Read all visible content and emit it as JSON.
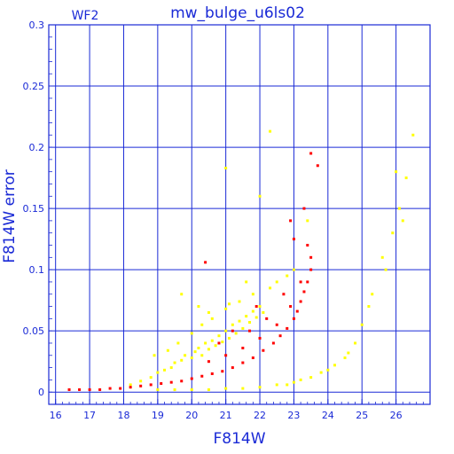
{
  "chart_data": {
    "type": "scatter",
    "title": "mw_bulge_u6ls02",
    "subtitle": "WF2",
    "xlabel": "F814W",
    "ylabel": "F814W error",
    "xlim": [
      15.8,
      27.0
    ],
    "ylim": [
      -0.01,
      0.3
    ],
    "xticks": [
      16,
      17,
      18,
      19,
      20,
      21,
      22,
      23,
      24,
      25,
      26
    ],
    "yticks": [
      0,
      0.05,
      0.1,
      0.15,
      0.2,
      0.25,
      0.3
    ],
    "ytick_labels": [
      "0",
      "0.05",
      "0.1",
      "0.15",
      "0.2",
      "0.25",
      "0.3"
    ],
    "grid": true,
    "series": [
      {
        "color": "#ffff00",
        "points": [
          [
            18.2,
            0.006
          ],
          [
            18.5,
            0.009
          ],
          [
            18.8,
            0.012
          ],
          [
            19.0,
            0.016
          ],
          [
            19.2,
            0.018
          ],
          [
            19.4,
            0.02
          ],
          [
            19.5,
            0.024
          ],
          [
            19.7,
            0.026
          ],
          [
            19.8,
            0.03
          ],
          [
            20.0,
            0.028
          ],
          [
            20.1,
            0.033
          ],
          [
            20.2,
            0.036
          ],
          [
            20.3,
            0.03
          ],
          [
            20.4,
            0.04
          ],
          [
            20.5,
            0.035
          ],
          [
            20.6,
            0.042
          ],
          [
            20.7,
            0.038
          ],
          [
            20.8,
            0.046
          ],
          [
            20.9,
            0.041
          ],
          [
            21.0,
            0.05
          ],
          [
            21.1,
            0.044
          ],
          [
            21.2,
            0.055
          ],
          [
            21.3,
            0.048
          ],
          [
            21.4,
            0.058
          ],
          [
            21.5,
            0.052
          ],
          [
            21.6,
            0.062
          ],
          [
            21.7,
            0.057
          ],
          [
            21.8,
            0.066
          ],
          [
            21.9,
            0.061
          ],
          [
            22.0,
            0.07
          ],
          [
            22.1,
            0.065
          ],
          [
            19.6,
            0.04
          ],
          [
            20.0,
            0.048
          ],
          [
            20.3,
            0.055
          ],
          [
            20.6,
            0.06
          ],
          [
            21.0,
            0.068
          ],
          [
            21.4,
            0.074
          ],
          [
            21.8,
            0.08
          ],
          [
            22.3,
            0.085
          ],
          [
            18.9,
            0.03
          ],
          [
            19.3,
            0.034
          ],
          [
            22.5,
            0.09
          ],
          [
            22.8,
            0.095
          ],
          [
            23.0,
            0.1
          ],
          [
            20.2,
            0.07
          ],
          [
            21.6,
            0.09
          ],
          [
            21.0,
            0.183
          ],
          [
            22.3,
            0.213
          ],
          [
            22.0,
            0.16
          ],
          [
            23.4,
            0.14
          ],
          [
            19.7,
            0.08
          ],
          [
            20.5,
            0.065
          ],
          [
            21.1,
            0.072
          ],
          [
            19.0,
            0.002
          ],
          [
            19.5,
            0.002
          ],
          [
            20.0,
            0.002
          ],
          [
            20.5,
            0.002
          ],
          [
            21.0,
            0.003
          ],
          [
            21.5,
            0.003
          ],
          [
            22.0,
            0.004
          ],
          [
            22.5,
            0.006
          ],
          [
            23.0,
            0.008
          ],
          [
            23.5,
            0.012
          ],
          [
            23.8,
            0.016
          ],
          [
            24.2,
            0.022
          ],
          [
            24.5,
            0.028
          ],
          [
            24.8,
            0.04
          ],
          [
            25.0,
            0.055
          ],
          [
            25.3,
            0.08
          ],
          [
            25.6,
            0.11
          ],
          [
            25.9,
            0.13
          ],
          [
            26.1,
            0.15
          ],
          [
            26.3,
            0.175
          ],
          [
            26.5,
            0.21
          ],
          [
            23.2,
            0.01
          ],
          [
            22.8,
            0.006
          ],
          [
            24.0,
            0.018
          ],
          [
            24.6,
            0.032
          ],
          [
            25.2,
            0.07
          ],
          [
            25.7,
            0.1
          ],
          [
            26.0,
            0.18
          ],
          [
            26.2,
            0.14
          ]
        ]
      },
      {
        "color": "#ff0000",
        "points": [
          [
            16.4,
            0.002
          ],
          [
            16.7,
            0.002
          ],
          [
            17.0,
            0.002
          ],
          [
            17.3,
            0.002
          ],
          [
            17.6,
            0.003
          ],
          [
            17.9,
            0.003
          ],
          [
            18.2,
            0.004
          ],
          [
            18.5,
            0.005
          ],
          [
            18.8,
            0.006
          ],
          [
            19.1,
            0.007
          ],
          [
            19.4,
            0.008
          ],
          [
            19.7,
            0.009
          ],
          [
            20.0,
            0.011
          ],
          [
            20.3,
            0.013
          ],
          [
            20.6,
            0.015
          ],
          [
            20.9,
            0.017
          ],
          [
            21.2,
            0.02
          ],
          [
            21.5,
            0.024
          ],
          [
            21.8,
            0.028
          ],
          [
            22.1,
            0.034
          ],
          [
            22.4,
            0.04
          ],
          [
            22.6,
            0.046
          ],
          [
            22.8,
            0.052
          ],
          [
            23.0,
            0.06
          ],
          [
            23.1,
            0.066
          ],
          [
            23.2,
            0.074
          ],
          [
            23.3,
            0.082
          ],
          [
            23.4,
            0.09
          ],
          [
            23.5,
            0.1
          ],
          [
            23.5,
            0.11
          ],
          [
            20.5,
            0.025
          ],
          [
            21.0,
            0.03
          ],
          [
            21.5,
            0.036
          ],
          [
            22.0,
            0.044
          ],
          [
            22.5,
            0.055
          ],
          [
            22.9,
            0.07
          ],
          [
            23.2,
            0.09
          ],
          [
            23.4,
            0.12
          ],
          [
            22.7,
            0.08
          ],
          [
            22.2,
            0.06
          ],
          [
            21.7,
            0.05
          ],
          [
            20.4,
            0.106
          ],
          [
            21.2,
            0.05
          ],
          [
            23.0,
            0.125
          ],
          [
            23.3,
            0.15
          ],
          [
            23.5,
            0.195
          ],
          [
            23.7,
            0.185
          ],
          [
            22.9,
            0.14
          ],
          [
            21.9,
            0.07
          ],
          [
            20.8,
            0.04
          ]
        ]
      }
    ]
  }
}
